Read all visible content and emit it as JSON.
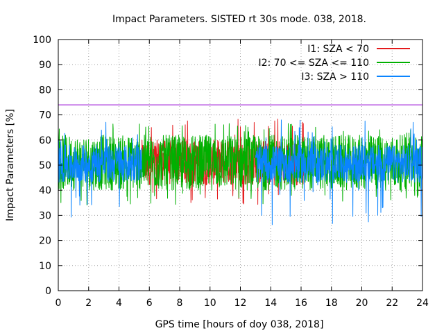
{
  "chart_data": {
    "type": "line",
    "title": "Impact Parameters. SISTED rt 30s mode. 038, 2018.",
    "xlabel": "GPS time [hours of doy 038, 2018]",
    "ylabel": "Impact Parameters [%]",
    "xlim": [
      0,
      24
    ],
    "ylim": [
      0,
      100
    ],
    "xticks": [
      0,
      2,
      4,
      6,
      8,
      10,
      12,
      14,
      16,
      18,
      20,
      22,
      24
    ],
    "yticks": [
      0,
      10,
      20,
      30,
      40,
      50,
      60,
      70,
      80,
      90,
      100
    ],
    "grid": true,
    "legend_position": "top-right",
    "reference_line": {
      "y": 74,
      "color": "#9400d3"
    },
    "series": [
      {
        "name": "I1: SZA < 70",
        "color": "#e41a1c",
        "center": 50,
        "typical_min": 42,
        "typical_max": 60,
        "min": 34,
        "max": 69,
        "active_ranges": [
          [
            5.5,
            16.2
          ]
        ]
      },
      {
        "name": "I2: 70 <= SZA <= 110",
        "color": "#00b000",
        "center": 50,
        "typical_min": 40,
        "typical_max": 62,
        "min": 34,
        "max": 67,
        "active_ranges": [
          [
            0,
            24
          ]
        ]
      },
      {
        "name": "I3: SZA > 110",
        "color": "#0a84ff",
        "center": 50,
        "typical_min": 43,
        "typical_max": 58,
        "min": 25.5,
        "max": 68,
        "active_ranges": [
          [
            0,
            5.5
          ],
          [
            13,
            24
          ]
        ]
      }
    ]
  }
}
